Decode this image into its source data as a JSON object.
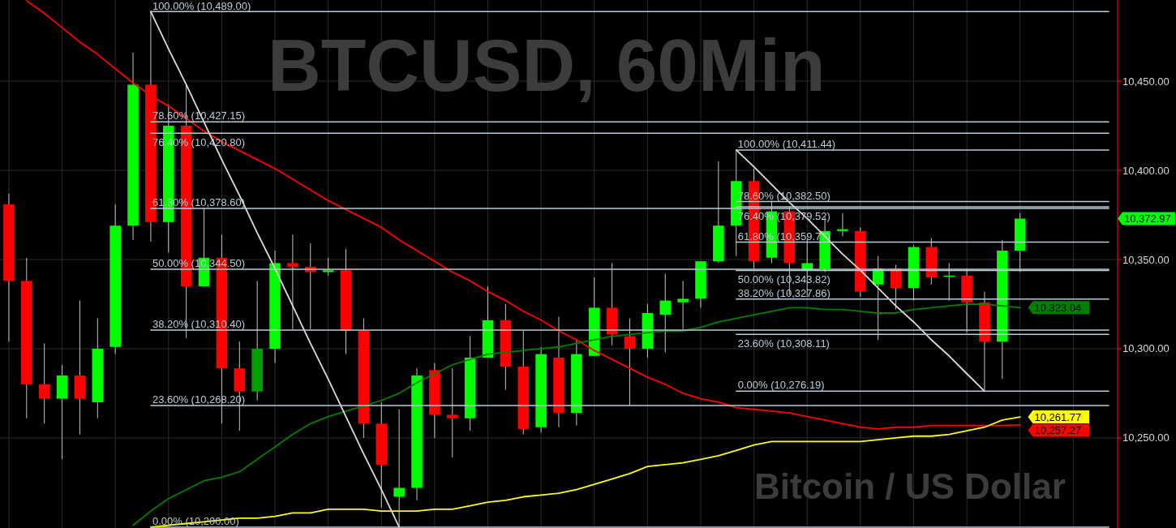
{
  "chart_data": {
    "type": "candlestick",
    "title": "BTCUSD, 60Min",
    "subtitle": "Bitcoin / US Dollar",
    "categories": [
      null,
      null,
      null,
      null,
      null,
      null,
      null,
      null,
      null,
      null,
      null,
      null,
      null,
      null,
      null,
      null,
      null,
      null,
      null,
      null,
      null,
      null,
      null,
      null,
      null,
      null,
      null,
      null,
      null,
      null,
      null,
      null,
      null,
      null,
      null,
      null,
      null,
      null,
      null,
      null,
      null,
      null,
      null,
      null,
      null,
      null,
      null,
      null,
      null,
      null,
      null,
      null,
      null,
      null,
      null,
      null,
      null,
      null,
      null,
      null,
      null,
      null,
      null
    ],
    "ohlc": [
      [
        10381,
        10387,
        10304,
        10338
      ],
      [
        10338,
        10351,
        10261,
        10280
      ],
      [
        10280,
        10303,
        10258,
        10272
      ],
      [
        10272,
        10291,
        10238,
        10285
      ],
      [
        10285,
        10327,
        10252,
        10272
      ],
      [
        10270,
        10317,
        10261,
        10300
      ],
      [
        10301,
        10381,
        10297,
        10369
      ],
      [
        10369,
        10466,
        10361,
        10448
      ],
      [
        10448,
        10489,
        10360,
        10371
      ],
      [
        10371,
        10437,
        10354,
        10425
      ],
      [
        10425,
        10448,
        10306,
        10335
      ],
      [
        10335,
        10379,
        10335,
        10351
      ],
      [
        10351,
        10364,
        10258,
        10289
      ],
      [
        10289,
        10304,
        10254,
        10276
      ],
      [
        10276,
        10338,
        10271,
        10300
      ],
      [
        10300,
        10355,
        10292,
        10348
      ],
      [
        10348,
        10364,
        10311,
        10346
      ],
      [
        10346,
        10359,
        10311,
        10343
      ],
      [
        10343,
        10351,
        10341,
        10344
      ],
      [
        10344,
        10356,
        10297,
        10310
      ],
      [
        10310,
        10317,
        10250,
        10258
      ],
      [
        10258,
        10270,
        10211,
        10235
      ],
      [
        10217,
        10266,
        10200,
        10222
      ],
      [
        10222,
        10289,
        10215,
        10285
      ],
      [
        10288,
        10292,
        10250,
        10263
      ],
      [
        10263,
        10289,
        10239,
        10261
      ],
      [
        10261,
        10307,
        10254,
        10295
      ],
      [
        10295,
        10335,
        10295,
        10316
      ],
      [
        10316,
        10325,
        10277,
        10290
      ],
      [
        10290,
        10310,
        10252,
        10255
      ],
      [
        10256,
        10301,
        10253,
        10297
      ],
      [
        10295,
        10318,
        10256,
        10264
      ],
      [
        10264,
        10305,
        10257,
        10297
      ],
      [
        10296,
        10340,
        10296,
        10323
      ],
      [
        10323,
        10348,
        10302,
        10308
      ],
      [
        10307,
        10317,
        10268,
        10300
      ],
      [
        10300,
        10325,
        10295,
        10320
      ],
      [
        10319,
        10342,
        10298,
        10327
      ],
      [
        10326,
        10338,
        10311,
        10328
      ],
      [
        10328,
        10349,
        10323,
        10349
      ],
      [
        10349,
        10405,
        10348,
        10369
      ],
      [
        10369,
        10411.44,
        10352,
        10394
      ],
      [
        10394,
        10401,
        10345,
        10349
      ],
      [
        10351,
        10383,
        10348,
        10377
      ],
      [
        10377,
        10380,
        10330,
        10348
      ],
      [
        10344,
        10362,
        10329,
        10348
      ],
      [
        10345,
        10374,
        10343,
        10366
      ],
      [
        10366,
        10376,
        10363,
        10367
      ],
      [
        10366,
        10368,
        10329,
        10332
      ],
      [
        10336,
        10352,
        10305,
        10345
      ],
      [
        10345,
        10347,
        10322,
        10334
      ],
      [
        10334,
        10358,
        10327,
        10357
      ],
      [
        10357,
        10362,
        10336,
        10340
      ],
      [
        10341,
        10348,
        10327,
        10341
      ],
      [
        10341,
        10345,
        10309,
        10326
      ],
      [
        10326,
        10332,
        10276.19,
        10304
      ],
      [
        10304,
        10361,
        10283,
        10355
      ],
      [
        10355,
        10376,
        10343,
        10372.97
      ],
      null,
      null,
      null,
      null,
      null
    ],
    "colors": [
      "#ff0000",
      "#ff0000",
      "#ff0000",
      "#00ff00",
      "#ff0000",
      "#00ff00",
      "#00ff00",
      "#00ff00",
      "#ff0000",
      "#00ff00",
      "#ff0000",
      "#00ff00",
      "#ff0000",
      "#ff0000",
      "#00a000",
      "#00ff00",
      "#ff0000",
      "#ff0000",
      "#00ff00",
      "#ff0000",
      "#ff0000",
      "#ff0000",
      "#00ff00",
      "#00ff00",
      "#ff0000",
      "#ff0000",
      "#00ff00",
      "#00ff00",
      "#ff0000",
      "#ff0000",
      "#00ff00",
      "#ff0000",
      "#00ff00",
      "#00ff00",
      "#ff0000",
      "#ff0000",
      "#00ff00",
      "#00ff00",
      "#00ff00",
      "#00ff00",
      "#00ff00",
      "#00ff00",
      "#ff0000",
      "#00ff00",
      "#ff0000",
      "#00ff00",
      "#00ff00",
      "#00ff00",
      "#ff0000",
      "#00ff00",
      "#ff0000",
      "#00ff00",
      "#ff0000",
      "#00ff00",
      "#ff0000",
      "#ff0000",
      "#00ff00",
      "#00ff00",
      null,
      null,
      null,
      null,
      null
    ],
    "ylim": [
      10199.5,
      10495.5
    ],
    "yticks": [
      {
        "value": 10250,
        "label": "10,250.00"
      },
      {
        "value": 10300,
        "label": "10,300.00"
      },
      {
        "value": 10350,
        "label": "10,350.00"
      },
      {
        "value": 10400,
        "label": "10,400.00"
      },
      {
        "value": 10450,
        "label": "10,450.00"
      }
    ],
    "grid": true,
    "annotations": [
      "10,372.97"
    ],
    "series": [
      {
        "type": "line",
        "color": "#ff0000",
        "values": [
          null,
          10495,
          10488,
          10480,
          10472,
          10465,
          10457,
          10449,
          10442,
          10436,
          10429,
          10422,
          10416,
          10411,
          10406,
          10401,
          10395,
          10389,
          10383,
          10378,
          10373,
          10368,
          10361,
          10355,
          10349,
          10343,
          10338,
          10332,
          10327,
          10321,
          10316,
          10310,
          10305,
          10299,
          10294,
          10289,
          10284,
          10280,
          10275,
          10272,
          10270,
          10267,
          10266,
          10265,
          10264,
          10262,
          10260,
          10258,
          10256,
          10255,
          10256,
          10256,
          10257,
          10257,
          10257,
          10257,
          10257,
          10257.27,
          null,
          null,
          null,
          null,
          null
        ],
        "value_labels": [
          null,
          null,
          null,
          null,
          null,
          null,
          null,
          null,
          null,
          null,
          null,
          null,
          null,
          null,
          null,
          null,
          null,
          null,
          null,
          null,
          null,
          null,
          null,
          null,
          null,
          null,
          null,
          null,
          null,
          null,
          null,
          null,
          null,
          null,
          null,
          null,
          null,
          null,
          null,
          null,
          null,
          null,
          null,
          null,
          null,
          null,
          null,
          null,
          null,
          null,
          null,
          null,
          null,
          null,
          null,
          null,
          null,
          "10,257.27",
          null,
          null,
          null,
          null,
          null
        ]
      },
      {
        "type": "line",
        "color": "#008000",
        "values": [
          null,
          null,
          null,
          null,
          null,
          null,
          null,
          10201,
          10209,
          10216,
          10221,
          10226,
          10228,
          10231,
          10238,
          10245,
          10252,
          10258,
          10262,
          10265,
          10268,
          10271,
          10275,
          10281,
          10286,
          10291,
          10294,
          10297,
          10298,
          10299,
          10300,
          10301,
          10303,
          10305,
          10307,
          10308,
          10309,
          10310,
          10310,
          10312,
          10315,
          10317,
          10319,
          10321,
          10323,
          10323,
          10322,
          10322,
          10321,
          10320,
          10320,
          10322,
          10323,
          10324,
          10325,
          10325,
          10324,
          10323.04,
          null,
          null,
          null,
          null,
          null
        ],
        "value_labels": [
          null,
          null,
          null,
          null,
          null,
          null,
          null,
          null,
          null,
          null,
          null,
          null,
          null,
          null,
          null,
          null,
          null,
          null,
          null,
          null,
          null,
          null,
          null,
          null,
          null,
          null,
          null,
          null,
          null,
          null,
          null,
          null,
          null,
          null,
          null,
          null,
          null,
          null,
          null,
          null,
          null,
          null,
          null,
          null,
          null,
          null,
          null,
          null,
          null,
          null,
          null,
          null,
          null,
          null,
          null,
          null,
          null,
          "10,323.04",
          null,
          null,
          null,
          null,
          null
        ]
      },
      {
        "type": "line",
        "color": "#ffff00",
        "values": [
          null,
          null,
          null,
          null,
          null,
          null,
          null,
          null,
          10200,
          10201,
          10202,
          10203,
          10204,
          10205,
          10205,
          10206,
          10208,
          10208,
          10210,
          10210,
          10210,
          10209,
          10209,
          10209,
          10210,
          10210,
          10212,
          10214,
          10215,
          10217,
          10218,
          10219,
          10221,
          10224,
          10227,
          10230,
          10234,
          10235,
          10236,
          10238,
          10240,
          10243,
          10246,
          10248,
          10248,
          10248,
          10248,
          10248,
          10248,
          10249,
          10250,
          10251,
          10251,
          10252,
          10254,
          10256,
          10260,
          10261.77,
          null,
          null,
          null,
          null,
          null
        ],
        "value_labels": [
          null,
          null,
          null,
          null,
          null,
          null,
          null,
          null,
          null,
          null,
          null,
          null,
          null,
          null,
          null,
          null,
          null,
          null,
          null,
          null,
          null,
          null,
          null,
          null,
          null,
          null,
          null,
          null,
          null,
          null,
          null,
          null,
          null,
          null,
          null,
          null,
          null,
          null,
          null,
          null,
          null,
          null,
          null,
          null,
          null,
          null,
          null,
          null,
          null,
          null,
          null,
          null,
          null,
          null,
          null,
          null,
          null,
          "10,261.77",
          null,
          null,
          null,
          null,
          null
        ]
      },
      {
        "type": "line",
        "color": "#dcdcdc",
        "values": [
          null,
          null,
          null,
          null,
          null,
          null,
          null,
          null,
          10489,
          10468,
          10448,
          10427,
          10406,
          10386,
          10365,
          10345,
          10324,
          10303,
          10283,
          10262,
          10241,
          10221,
          10200,
          null,
          null,
          null,
          null,
          null,
          null,
          null,
          null,
          null,
          null,
          null,
          null,
          null,
          null,
          null,
          null,
          null,
          null,
          null,
          null,
          null,
          null,
          null,
          null,
          null,
          null,
          null,
          null,
          null,
          null,
          null,
          null,
          null,
          null,
          null,
          null,
          null,
          null,
          null,
          null
        ]
      },
      {
        "type": "line",
        "color": "#dcdcdc",
        "values": [
          null,
          null,
          null,
          null,
          null,
          null,
          null,
          null,
          null,
          null,
          null,
          null,
          null,
          null,
          null,
          null,
          null,
          null,
          null,
          null,
          null,
          null,
          null,
          null,
          null,
          null,
          null,
          null,
          null,
          null,
          null,
          null,
          null,
          null,
          null,
          null,
          null,
          null,
          null,
          null,
          null,
          10411.44,
          10402,
          10392,
          10382,
          10373,
          10363,
          10353,
          10344,
          10334,
          10324,
          10315,
          10305,
          10296,
          10286,
          10276.19,
          null,
          null,
          null,
          null,
          null,
          null,
          null
        ]
      },
      {
        "type": "line",
        "name": "100.00% (10,489.00)",
        "color": "#b9ccd6",
        "values": [
          null,
          null,
          null,
          null,
          null,
          null,
          null,
          null,
          10489,
          10489,
          10489,
          10489,
          10489,
          10489,
          10489,
          10489,
          10489,
          10489,
          10489,
          10489,
          10489,
          10489,
          10489,
          10489,
          10489,
          10489,
          10489,
          10489,
          10489,
          10489,
          10489,
          10489,
          10489,
          10489,
          10489,
          10489,
          10489,
          10489,
          10489,
          10489,
          10489,
          10489,
          10489,
          10489,
          10489,
          10489,
          10489,
          10489,
          10489,
          10489,
          10489,
          10489,
          10489,
          10489,
          10489,
          10489,
          10489,
          10489,
          10489,
          10489,
          10489,
          10489,
          10489
        ]
      },
      {
        "type": "line",
        "name": "78.60% (10,427.15)",
        "color": "#b9ccd6",
        "values": [
          null,
          null,
          null,
          null,
          null,
          null,
          null,
          null,
          10427.15,
          10427.15,
          10427.15,
          10427.15,
          10427.15,
          10427.15,
          10427.15,
          10427.15,
          10427.15,
          10427.15,
          10427.15,
          10427.15,
          10427.15,
          10427.15,
          10427.15,
          10427.15,
          10427.15,
          10427.15,
          10427.15,
          10427.15,
          10427.15,
          10427.15,
          10427.15,
          10427.15,
          10427.15,
          10427.15,
          10427.15,
          10427.15,
          10427.15,
          10427.15,
          10427.15,
          10427.15,
          10427.15,
          10427.15,
          10427.15,
          10427.15,
          10427.15,
          10427.15,
          10427.15,
          10427.15,
          10427.15,
          10427.15,
          10427.15,
          10427.15,
          10427.15,
          10427.15,
          10427.15,
          10427.15,
          10427.15,
          10427.15,
          10427.15,
          10427.15,
          10427.15,
          10427.15,
          10427.15
        ]
      },
      {
        "type": "line",
        "name": "76.40% (10,420.80)",
        "color": "#b9ccd6",
        "values": [
          null,
          null,
          null,
          null,
          null,
          null,
          null,
          null,
          10420.8,
          10420.8,
          10420.8,
          10420.8,
          10420.8,
          10420.8,
          10420.8,
          10420.8,
          10420.8,
          10420.8,
          10420.8,
          10420.8,
          10420.8,
          10420.8,
          10420.8,
          10420.8,
          10420.8,
          10420.8,
          10420.8,
          10420.8,
          10420.8,
          10420.8,
          10420.8,
          10420.8,
          10420.8,
          10420.8,
          10420.8,
          10420.8,
          10420.8,
          10420.8,
          10420.8,
          10420.8,
          10420.8,
          10420.8,
          10420.8,
          10420.8,
          10420.8,
          10420.8,
          10420.8,
          10420.8,
          10420.8,
          10420.8,
          10420.8,
          10420.8,
          10420.8,
          10420.8,
          10420.8,
          10420.8,
          10420.8,
          10420.8,
          10420.8,
          10420.8,
          10420.8,
          10420.8,
          10420.8
        ]
      },
      {
        "type": "line",
        "name": "61.80% (10,378.60)",
        "color": "#b9ccd6",
        "values": [
          null,
          null,
          null,
          null,
          null,
          null,
          null,
          null,
          10378.6,
          10378.6,
          10378.6,
          10378.6,
          10378.6,
          10378.6,
          10378.6,
          10378.6,
          10378.6,
          10378.6,
          10378.6,
          10378.6,
          10378.6,
          10378.6,
          10378.6,
          10378.6,
          10378.6,
          10378.6,
          10378.6,
          10378.6,
          10378.6,
          10378.6,
          10378.6,
          10378.6,
          10378.6,
          10378.6,
          10378.6,
          10378.6,
          10378.6,
          10378.6,
          10378.6,
          10378.6,
          10378.6,
          10378.6,
          10378.6,
          10378.6,
          10378.6,
          10378.6,
          10378.6,
          10378.6,
          10378.6,
          10378.6,
          10378.6,
          10378.6,
          10378.6,
          10378.6,
          10378.6,
          10378.6,
          10378.6,
          10378.6,
          10378.6,
          10378.6,
          10378.6,
          10378.6,
          10378.6
        ]
      },
      {
        "type": "line",
        "name": "50.00% (10,344.50)",
        "color": "#b9ccd6",
        "values": [
          null,
          null,
          null,
          null,
          null,
          null,
          null,
          null,
          10344.5,
          10344.5,
          10344.5,
          10344.5,
          10344.5,
          10344.5,
          10344.5,
          10344.5,
          10344.5,
          10344.5,
          10344.5,
          10344.5,
          10344.5,
          10344.5,
          10344.5,
          10344.5,
          10344.5,
          10344.5,
          10344.5,
          10344.5,
          10344.5,
          10344.5,
          10344.5,
          10344.5,
          10344.5,
          10344.5,
          10344.5,
          10344.5,
          10344.5,
          10344.5,
          10344.5,
          10344.5,
          10344.5,
          10344.5,
          10344.5,
          10344.5,
          10344.5,
          10344.5,
          10344.5,
          10344.5,
          10344.5,
          10344.5,
          10344.5,
          10344.5,
          10344.5,
          10344.5,
          10344.5,
          10344.5,
          10344.5,
          10344.5,
          10344.5,
          10344.5,
          10344.5,
          10344.5,
          10344.5
        ]
      },
      {
        "type": "line",
        "name": "38.20% (10,310.40)",
        "color": "#b9ccd6",
        "values": [
          null,
          null,
          null,
          null,
          null,
          null,
          null,
          null,
          10310.4,
          10310.4,
          10310.4,
          10310.4,
          10310.4,
          10310.4,
          10310.4,
          10310.4,
          10310.4,
          10310.4,
          10310.4,
          10310.4,
          10310.4,
          10310.4,
          10310.4,
          10310.4,
          10310.4,
          10310.4,
          10310.4,
          10310.4,
          10310.4,
          10310.4,
          10310.4,
          10310.4,
          10310.4,
          10310.4,
          10310.4,
          10310.4,
          10310.4,
          10310.4,
          10310.4,
          10310.4,
          10310.4,
          10310.4,
          10310.4,
          10310.4,
          10310.4,
          10310.4,
          10310.4,
          10310.4,
          10310.4,
          10310.4,
          10310.4,
          10310.4,
          10310.4,
          10310.4,
          10310.4,
          10310.4,
          10310.4,
          10310.4,
          10310.4,
          10310.4,
          10310.4,
          10310.4,
          10310.4
        ]
      },
      {
        "type": "line",
        "name": "23.60% (10,268.20)",
        "color": "#b9ccd6",
        "values": [
          null,
          null,
          null,
          null,
          null,
          null,
          null,
          null,
          10268.2,
          10268.2,
          10268.2,
          10268.2,
          10268.2,
          10268.2,
          10268.2,
          10268.2,
          10268.2,
          10268.2,
          10268.2,
          10268.2,
          10268.2,
          10268.2,
          10268.2,
          10268.2,
          10268.2,
          10268.2,
          10268.2,
          10268.2,
          10268.2,
          10268.2,
          10268.2,
          10268.2,
          10268.2,
          10268.2,
          10268.2,
          10268.2,
          10268.2,
          10268.2,
          10268.2,
          10268.2,
          10268.2,
          10268.2,
          10268.2,
          10268.2,
          10268.2,
          10268.2,
          10268.2,
          10268.2,
          10268.2,
          10268.2,
          10268.2,
          10268.2,
          10268.2,
          10268.2,
          10268.2,
          10268.2,
          10268.2,
          10268.2,
          10268.2,
          10268.2,
          10268.2,
          10268.2,
          10268.2
        ]
      },
      {
        "type": "line",
        "name": "0.00% (10,200.00)",
        "color": "#b9ccd6",
        "values": [
          null,
          null,
          null,
          null,
          null,
          null,
          null,
          null,
          10200,
          10200,
          10200,
          10200,
          10200,
          10200,
          10200,
          10200,
          10200,
          10200,
          10200,
          10200,
          10200,
          10200,
          10200,
          10200,
          10200,
          10200,
          10200,
          10200,
          10200,
          10200,
          10200,
          10200,
          10200,
          10200,
          10200,
          10200,
          10200,
          10200,
          10200,
          10200,
          10200,
          10200,
          10200,
          10200,
          10200,
          10200,
          10200,
          10200,
          10200,
          10200,
          10200,
          10200,
          10200,
          10200,
          10200,
          10200,
          10200,
          10200,
          10200,
          10200,
          10200,
          10200,
          10200
        ]
      },
      {
        "type": "line",
        "name": "100.00% (10,411.44)",
        "color": "#b9ccd6",
        "values": [
          null,
          null,
          null,
          null,
          null,
          null,
          null,
          null,
          null,
          null,
          null,
          null,
          null,
          null,
          null,
          null,
          null,
          null,
          null,
          null,
          null,
          null,
          null,
          null,
          null,
          null,
          null,
          null,
          null,
          null,
          null,
          null,
          null,
          null,
          null,
          null,
          null,
          null,
          null,
          null,
          null,
          10411.44,
          10411.44,
          10411.44,
          10411.44,
          10411.44,
          10411.44,
          10411.44,
          10411.44,
          10411.44,
          10411.44,
          10411.44,
          10411.44,
          10411.44,
          10411.44,
          10411.44,
          10411.44,
          10411.44,
          10411.44,
          10411.44,
          10411.44,
          10411.44,
          10411.44
        ]
      },
      {
        "type": "line",
        "name": "78.60% (10,382.50)",
        "color": "#b9ccd6",
        "values": [
          null,
          null,
          null,
          null,
          null,
          null,
          null,
          null,
          null,
          null,
          null,
          null,
          null,
          null,
          null,
          null,
          null,
          null,
          null,
          null,
          null,
          null,
          null,
          null,
          null,
          null,
          null,
          null,
          null,
          null,
          null,
          null,
          null,
          null,
          null,
          null,
          null,
          null,
          null,
          null,
          null,
          10382.5,
          10382.5,
          10382.5,
          10382.5,
          10382.5,
          10382.5,
          10382.5,
          10382.5,
          10382.5,
          10382.5,
          10382.5,
          10382.5,
          10382.5,
          10382.5,
          10382.5,
          10382.5,
          10382.5,
          10382.5,
          10382.5,
          10382.5,
          10382.5,
          10382.5
        ]
      },
      {
        "type": "line",
        "name": "76.40% (10,379.52)",
        "color": "#b9ccd6",
        "values": [
          null,
          null,
          null,
          null,
          null,
          null,
          null,
          null,
          null,
          null,
          null,
          null,
          null,
          null,
          null,
          null,
          null,
          null,
          null,
          null,
          null,
          null,
          null,
          null,
          null,
          null,
          null,
          null,
          null,
          null,
          null,
          null,
          null,
          null,
          null,
          null,
          null,
          null,
          null,
          null,
          null,
          10379.52,
          10379.52,
          10379.52,
          10379.52,
          10379.52,
          10379.52,
          10379.52,
          10379.52,
          10379.52,
          10379.52,
          10379.52,
          10379.52,
          10379.52,
          10379.52,
          10379.52,
          10379.52,
          10379.52,
          10379.52,
          10379.52,
          10379.52,
          10379.52,
          10379.52
        ]
      },
      {
        "type": "line",
        "name": "61.80% (10,359.77)",
        "color": "#b9ccd6",
        "values": [
          null,
          null,
          null,
          null,
          null,
          null,
          null,
          null,
          null,
          null,
          null,
          null,
          null,
          null,
          null,
          null,
          null,
          null,
          null,
          null,
          null,
          null,
          null,
          null,
          null,
          null,
          null,
          null,
          null,
          null,
          null,
          null,
          null,
          null,
          null,
          null,
          null,
          null,
          null,
          null,
          null,
          10359.77,
          10359.77,
          10359.77,
          10359.77,
          10359.77,
          10359.77,
          10359.77,
          10359.77,
          10359.77,
          10359.77,
          10359.77,
          10359.77,
          10359.77,
          10359.77,
          10359.77,
          10359.77,
          10359.77,
          10359.77,
          10359.77,
          10359.77,
          10359.77,
          10359.77
        ]
      },
      {
        "type": "line",
        "name": "50.00% (10,343.82)",
        "color": "#b9ccd6",
        "values": [
          null,
          null,
          null,
          null,
          null,
          null,
          null,
          null,
          null,
          null,
          null,
          null,
          null,
          null,
          null,
          null,
          null,
          null,
          null,
          null,
          null,
          null,
          null,
          null,
          null,
          null,
          null,
          null,
          null,
          null,
          null,
          null,
          null,
          null,
          null,
          null,
          null,
          null,
          null,
          null,
          null,
          10343.82,
          10343.82,
          10343.82,
          10343.82,
          10343.82,
          10343.82,
          10343.82,
          10343.82,
          10343.82,
          10343.82,
          10343.82,
          10343.82,
          10343.82,
          10343.82,
          10343.82,
          10343.82,
          10343.82,
          10343.82,
          10343.82,
          10343.82,
          10343.82,
          10343.82
        ]
      },
      {
        "type": "line",
        "name": "38.20% (10,327.86)",
        "color": "#b9ccd6",
        "values": [
          null,
          null,
          null,
          null,
          null,
          null,
          null,
          null,
          null,
          null,
          null,
          null,
          null,
          null,
          null,
          null,
          null,
          null,
          null,
          null,
          null,
          null,
          null,
          null,
          null,
          null,
          null,
          null,
          null,
          null,
          null,
          null,
          null,
          null,
          null,
          null,
          null,
          null,
          null,
          null,
          null,
          10327.86,
          10327.86,
          10327.86,
          10327.86,
          10327.86,
          10327.86,
          10327.86,
          10327.86,
          10327.86,
          10327.86,
          10327.86,
          10327.86,
          10327.86,
          10327.86,
          10327.86,
          10327.86,
          10327.86,
          10327.86,
          10327.86,
          10327.86,
          10327.86,
          10327.86
        ]
      },
      {
        "type": "line",
        "name": "23.60% (10,308.11)",
        "color": "#b9ccd6",
        "values": [
          null,
          null,
          null,
          null,
          null,
          null,
          null,
          null,
          null,
          null,
          null,
          null,
          null,
          null,
          null,
          null,
          null,
          null,
          null,
          null,
          null,
          null,
          null,
          null,
          null,
          null,
          null,
          null,
          null,
          null,
          null,
          null,
          null,
          null,
          null,
          null,
          null,
          null,
          null,
          null,
          null,
          10308.11,
          10308.11,
          10308.11,
          10308.11,
          10308.11,
          10308.11,
          10308.11,
          10308.11,
          10308.11,
          10308.11,
          10308.11,
          10308.11,
          10308.11,
          10308.11,
          10308.11,
          10308.11,
          10308.11,
          10308.11,
          10308.11,
          10308.11,
          10308.11,
          10308.11
        ]
      },
      {
        "type": "line",
        "name": "0.00% (10,276.19)",
        "color": "#b9ccd6",
        "values": [
          null,
          null,
          null,
          null,
          null,
          null,
          null,
          null,
          null,
          null,
          null,
          null,
          null,
          null,
          null,
          null,
          null,
          null,
          null,
          null,
          null,
          null,
          null,
          null,
          null,
          null,
          null,
          null,
          null,
          null,
          null,
          null,
          null,
          null,
          null,
          null,
          null,
          null,
          null,
          null,
          null,
          10276.19,
          10276.19,
          10276.19,
          10276.19,
          10276.19,
          10276.19,
          10276.19,
          10276.19,
          10276.19,
          10276.19,
          10276.19,
          10276.19,
          10276.19,
          10276.19,
          10276.19,
          10276.19,
          10276.19,
          10276.19,
          10276.19,
          10276.19,
          10276.19,
          10276.19
        ]
      }
    ]
  }
}
